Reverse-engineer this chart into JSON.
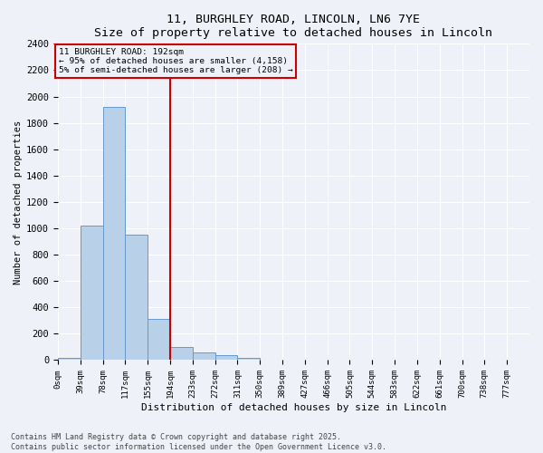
{
  "title_line1": "11, BURGHLEY ROAD, LINCOLN, LN6 7YE",
  "title_line2": "Size of property relative to detached houses in Lincoln",
  "xlabel": "Distribution of detached houses by size in Lincoln",
  "ylabel": "Number of detached properties",
  "bar_categories": [
    "0sqm",
    "39sqm",
    "78sqm",
    "117sqm",
    "155sqm",
    "194sqm",
    "233sqm",
    "272sqm",
    "311sqm",
    "350sqm",
    "389sqm",
    "427sqm",
    "466sqm",
    "505sqm",
    "544sqm",
    "583sqm",
    "622sqm",
    "661sqm",
    "700sqm",
    "738sqm",
    "777sqm"
  ],
  "bar_values": [
    20,
    1020,
    1920,
    950,
    310,
    100,
    60,
    35,
    20,
    5,
    0,
    0,
    0,
    0,
    0,
    0,
    0,
    0,
    0,
    0,
    0
  ],
  "bar_color": "#b8d0e8",
  "bar_edge_color": "#6699cc",
  "vline_color": "#cc0000",
  "vline_bin": 5,
  "ylim": [
    0,
    2400
  ],
  "yticks": [
    0,
    200,
    400,
    600,
    800,
    1000,
    1200,
    1400,
    1600,
    1800,
    2000,
    2200,
    2400
  ],
  "annotation_text": "11 BURGHLEY ROAD: 192sqm\n← 95% of detached houses are smaller (4,158)\n5% of semi-detached houses are larger (208) →",
  "annotation_box_color": "#cc0000",
  "background_color": "#eef2f8",
  "grid_color": "#ffffff",
  "footer_line1": "Contains HM Land Registry data © Crown copyright and database right 2025.",
  "footer_line2": "Contains public sector information licensed under the Open Government Licence v3.0.",
  "bin_width": 39,
  "n_bins": 21
}
